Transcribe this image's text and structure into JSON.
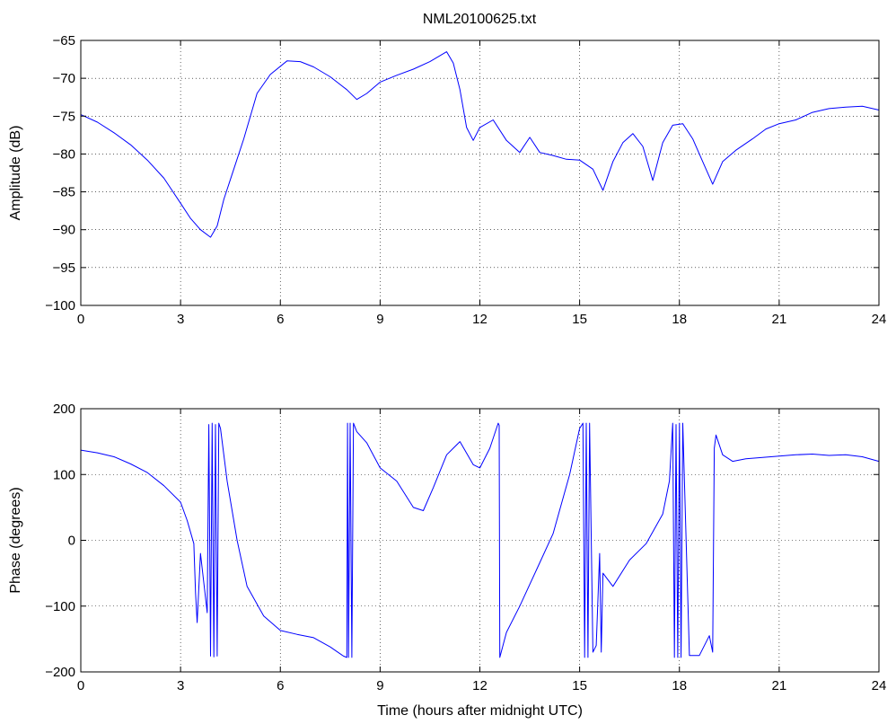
{
  "figure_title": "NML20100625.txt",
  "colors": {
    "series": "#0000ff",
    "axes": "#000000",
    "background": "#ffffff"
  },
  "chart_data": [
    {
      "type": "line",
      "title": "NML20100625.txt",
      "xlabel": "",
      "ylabel": "Amplitude (dB)",
      "xlim": [
        0,
        24
      ],
      "ylim": [
        -100,
        -65
      ],
      "xticks": [
        0,
        3,
        6,
        9,
        12,
        15,
        18,
        21,
        24
      ],
      "yticks": [
        -100,
        -95,
        -90,
        -85,
        -80,
        -75,
        -70,
        -65
      ],
      "xtick_labels": [
        "0",
        "3",
        "6",
        "9",
        "12",
        "15",
        "18",
        "21",
        "24"
      ],
      "ytick_labels": [
        "−100",
        "−95",
        "−90",
        "−85",
        "−80",
        "−75",
        "−70",
        "−65"
      ],
      "grid": true,
      "series": [
        {
          "x": [
            0,
            0.5,
            1,
            1.5,
            2,
            2.5,
            3,
            3.3,
            3.6,
            3.9,
            4.1,
            4.3,
            4.6,
            4.9,
            5.3,
            5.7,
            6.2,
            6.6,
            7.0,
            7.5,
            8.0,
            8.3,
            8.6,
            9.0,
            9.5,
            10.0,
            10.5,
            11.0,
            11.2,
            11.4,
            11.6,
            11.8,
            12.0,
            12.4,
            12.8,
            13.2,
            13.5,
            13.8,
            14.2,
            14.6,
            15.0,
            15.4,
            15.7,
            16.0,
            16.3,
            16.6,
            16.9,
            17.2,
            17.5,
            17.8,
            18.1,
            18.4,
            18.7,
            19.0,
            19.3,
            19.7,
            20.2,
            20.6,
            21.0,
            21.5,
            22.0,
            22.5,
            23.0,
            23.5,
            24.0
          ],
          "values": [
            -74.8,
            -75.8,
            -77.2,
            -78.8,
            -80.8,
            -83.2,
            -86.5,
            -88.5,
            -90.0,
            -91.0,
            -89.5,
            -86.0,
            -82.0,
            -78.0,
            -72.0,
            -69.5,
            -67.7,
            -67.8,
            -68.5,
            -69.8,
            -71.5,
            -72.8,
            -72.0,
            -70.5,
            -69.6,
            -68.8,
            -67.8,
            -66.5,
            -68.0,
            -71.5,
            -76.5,
            -78.2,
            -76.5,
            -75.5,
            -78.2,
            -79.8,
            -77.8,
            -79.8,
            -80.2,
            -80.7,
            -80.8,
            -82.0,
            -84.8,
            -81.0,
            -78.5,
            -77.3,
            -79.0,
            -83.5,
            -78.5,
            -76.2,
            -76.0,
            -78.0,
            -81.0,
            -84.0,
            -81.0,
            -79.5,
            -78.0,
            -76.7,
            -76.0,
            -75.5,
            -74.5,
            -74.0,
            -73.8,
            -73.7,
            -74.2
          ]
        }
      ]
    },
    {
      "type": "line",
      "title": "",
      "xlabel": "Time (hours after midnight UTC)",
      "ylabel": "Phase (degrees)",
      "xlim": [
        0,
        24
      ],
      "ylim": [
        -200,
        200
      ],
      "xticks": [
        0,
        3,
        6,
        9,
        12,
        15,
        18,
        21,
        24
      ],
      "yticks": [
        -200,
        -100,
        0,
        100,
        200
      ],
      "xtick_labels": [
        "0",
        "3",
        "6",
        "9",
        "12",
        "15",
        "18",
        "21",
        "24"
      ],
      "ytick_labels": [
        "−200",
        "−100",
        "0",
        "100",
        "200"
      ],
      "grid": true,
      "series": [
        {
          "x": [
            0,
            0.5,
            1,
            1.5,
            2,
            2.5,
            3,
            3.2,
            3.4,
            3.45,
            3.5,
            3.6,
            3.8,
            3.85,
            3.9,
            3.95,
            4.0,
            4.05,
            4.1,
            4.15,
            4.2,
            4.4,
            4.7,
            5.0,
            5.5,
            6.0,
            6.5,
            7.0,
            7.5,
            7.9,
            8.0,
            8.02,
            8.05,
            8.1,
            8.15,
            8.2,
            8.3,
            8.6,
            9.0,
            9.5,
            10.0,
            10.3,
            10.6,
            11.0,
            11.4,
            11.8,
            12.0,
            12.3,
            12.55,
            12.58,
            12.6,
            12.8,
            13.2,
            13.7,
            14.2,
            14.7,
            15.0,
            15.1,
            15.15,
            15.2,
            15.25,
            15.3,
            15.4,
            15.5,
            15.6,
            15.65,
            15.7,
            16.0,
            16.5,
            17.0,
            17.5,
            17.7,
            17.8,
            17.85,
            17.9,
            17.95,
            18.0,
            18.05,
            18.1,
            18.3,
            18.6,
            18.9,
            19.0,
            19.05,
            19.1,
            19.3,
            19.6,
            20.0,
            20.5,
            21.0,
            21.5,
            22.0,
            22.5,
            23.0,
            23.5,
            24.0
          ],
          "values": [
            137,
            133,
            127,
            116,
            103,
            83,
            58,
            30,
            -5,
            -80,
            -125,
            -20,
            -110,
            176,
            -176,
            178,
            -177,
            176,
            -176,
            178,
            170,
            90,
            0,
            -70,
            -115,
            -137,
            -143,
            -148,
            -162,
            -176,
            -178,
            178,
            -178,
            178,
            -178,
            178,
            165,
            148,
            110,
            90,
            50,
            45,
            80,
            130,
            150,
            115,
            110,
            140,
            178,
            175,
            -178,
            -140,
            -100,
            -45,
            10,
            100,
            170,
            178,
            -178,
            178,
            -178,
            178,
            -170,
            -160,
            -20,
            -170,
            -50,
            -70,
            -30,
            -5,
            40,
            90,
            178,
            -178,
            176,
            -178,
            178,
            -178,
            178,
            -175,
            -175,
            -145,
            -170,
            140,
            160,
            130,
            120,
            124,
            126,
            128,
            130,
            131,
            129,
            130,
            127,
            120
          ]
        }
      ]
    }
  ]
}
